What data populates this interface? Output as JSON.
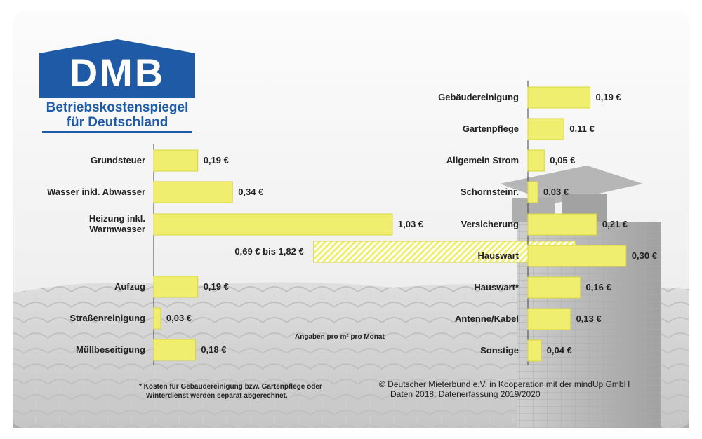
{
  "logo": {
    "name": "DMB",
    "line1": "Betriebskostenspiegel",
    "line2": "für Deutschland"
  },
  "colors": {
    "bar": "#f0ee6e",
    "bar_stroke": "#d8d640",
    "logo_blue": "#1f5aa6"
  },
  "chart_data": [
    {
      "type": "bar",
      "orientation": "horizontal",
      "unit": "€",
      "categories": [
        "Grundsteuer",
        "Wasser inkl. Abwasser",
        "Heizung inkl. Warmwasser",
        "Aufzug",
        "Straßenreinigung",
        "Müllbeseitigung"
      ],
      "values": [
        0.19,
        0.34,
        1.03,
        0.19,
        0.03,
        0.18
      ],
      "value_labels": [
        "0,19 €",
        "0,34 €",
        "1,03 €",
        "0,19 €",
        "0,03 €",
        "0,18 €"
      ],
      "range": {
        "category": "Heizung inkl. Warmwasser",
        "min": 0.69,
        "max": 1.82,
        "label": "0,69 € bis 1,82 €"
      }
    },
    {
      "type": "bar",
      "orientation": "horizontal",
      "unit": "€",
      "categories": [
        "Gebäudereinigung",
        "Gartenpflege",
        "Allgemein Strom",
        "Schornsteinr.",
        "Versicherung",
        "Hauswart",
        "Hauswart*",
        "Antenne/Kabel",
        "Sonstige"
      ],
      "values": [
        0.19,
        0.11,
        0.05,
        0.03,
        0.21,
        0.3,
        0.16,
        0.13,
        0.04
      ],
      "value_labels": [
        "0,19 €",
        "0,11 €",
        "0,05 €",
        "0,03 €",
        "0,21 €",
        "0,30 €",
        "0,16 €",
        "0,13 €",
        "0,04 €"
      ]
    }
  ],
  "annotations": {
    "unit_note": "Angaben pro m² pro Monat",
    "footnote_line1": "* Kosten für Gebäudereinigung bzw. Gartenpflege oder",
    "footnote_line2": "Winterdienst werden separat abgerechnet.",
    "copyright_line1": "© Deutscher Mieterbund e.V. in Kooperation mit der mindUp GmbH",
    "copyright_line2": "Daten 2018; Datenerfassung 2019/2020"
  }
}
